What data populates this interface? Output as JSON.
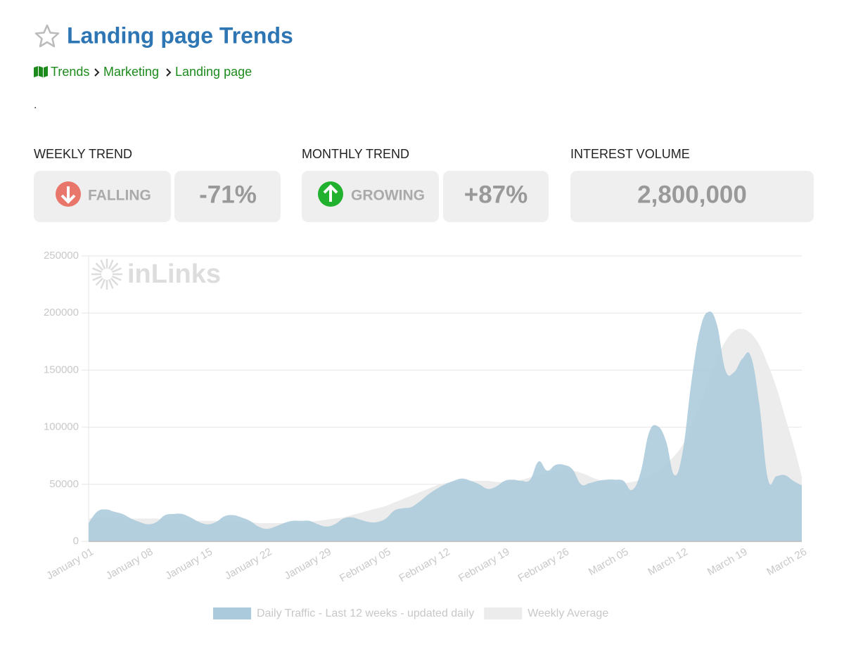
{
  "header": {
    "title": "Landing page Trends",
    "breadcrumb": [
      "Trends",
      "Marketing",
      "Landing page"
    ],
    "note": "."
  },
  "stats": [
    {
      "label": "WEEKLY TREND",
      "status": "FALLING",
      "value": "-71%"
    },
    {
      "label": "MONTHLY TREND",
      "status": "GROWING",
      "value": "+87%"
    },
    {
      "label": "INTEREST VOLUME",
      "value": "2,800,000"
    }
  ],
  "chart_data": {
    "type": "area",
    "watermark": "inLinks",
    "categories": [
      "January 01",
      null,
      null,
      null,
      null,
      null,
      null,
      "January 08",
      null,
      null,
      null,
      null,
      null,
      null,
      "January 15",
      null,
      null,
      null,
      null,
      null,
      null,
      "January 22",
      null,
      null,
      null,
      null,
      null,
      null,
      "January 29",
      null,
      null,
      null,
      null,
      null,
      null,
      "February 05",
      null,
      null,
      null,
      null,
      null,
      null,
      "February 12",
      null,
      null,
      null,
      null,
      null,
      null,
      "February 19",
      null,
      null,
      null,
      null,
      null,
      null,
      "February 26",
      null,
      null,
      null,
      null,
      null,
      null,
      "March 05",
      null,
      null,
      null,
      null,
      null,
      null,
      "March 12",
      null,
      null,
      null,
      null,
      null,
      null,
      "March 19",
      null,
      null,
      null,
      null,
      null,
      null,
      "March 26"
    ],
    "series": [
      {
        "name": "Daily Traffic - Last 12 weeks - updated daily",
        "color": "#abcbdc",
        "values": [
          16000,
          26000,
          28000,
          26000,
          24000,
          20000,
          17000,
          15000,
          17000,
          23000,
          24000,
          24000,
          21000,
          17000,
          15000,
          17000,
          22000,
          23000,
          21000,
          18000,
          13000,
          11000,
          13000,
          16000,
          18000,
          18000,
          18000,
          15000,
          13000,
          15000,
          20000,
          21000,
          19000,
          17000,
          17000,
          20000,
          27000,
          29000,
          30000,
          35000,
          41000,
          46000,
          50000,
          53000,
          55000,
          53000,
          50000,
          46000,
          48000,
          53000,
          54000,
          53000,
          54000,
          70000,
          62000,
          67000,
          67000,
          63000,
          50000,
          51000,
          53000,
          54000,
          54000,
          53000,
          45000,
          60000,
          95000,
          101000,
          88000,
          58000,
          80000,
          140000,
          185000,
          201000,
          190000,
          150000,
          148000,
          160000,
          162000,
          120000,
          55000,
          57000,
          58000,
          53000,
          49000
        ]
      },
      {
        "name": "Weekly Average",
        "color": "#ececec",
        "values": [
          20000,
          21000,
          21000,
          21000,
          21000,
          20000,
          20000,
          20000,
          20000,
          19000,
          19000,
          18000,
          18000,
          18000,
          18000,
          18000,
          18000,
          18000,
          17000,
          17000,
          16000,
          16000,
          16000,
          16000,
          16000,
          16000,
          17000,
          18000,
          19000,
          20000,
          21000,
          23000,
          25000,
          27000,
          29000,
          31000,
          34000,
          37000,
          40000,
          43000,
          46000,
          49000,
          51000,
          52000,
          53000,
          53000,
          53000,
          53000,
          52000,
          52000,
          53000,
          54000,
          56000,
          58000,
          60000,
          62000,
          63000,
          62000,
          60000,
          57000,
          54000,
          52000,
          51000,
          51000,
          52000,
          54000,
          57000,
          62000,
          68000,
          75000,
          85000,
          100000,
          120000,
          140000,
          160000,
          175000,
          184000,
          186000,
          182000,
          172000,
          155000,
          135000,
          110000,
          85000,
          57000
        ]
      }
    ],
    "ylim": [
      0,
      250000
    ],
    "yticks": [
      0,
      50000,
      100000,
      150000,
      200000,
      250000
    ],
    "grid": true
  }
}
